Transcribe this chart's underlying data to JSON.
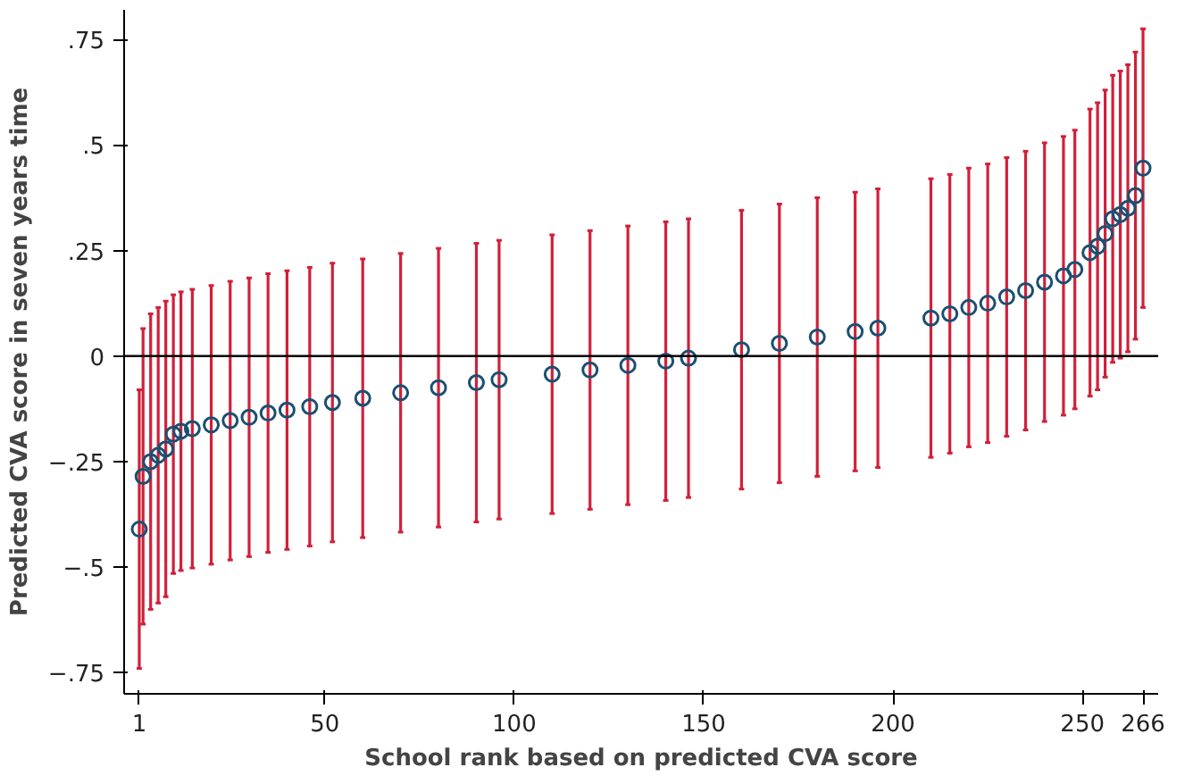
{
  "chart_data": {
    "type": "scatter",
    "xlabel": "School rank based on predicted CVA score",
    "ylabel": "Predicted CVA score in seven years time",
    "marker": "circle",
    "x": [
      1,
      2,
      4,
      6,
      8,
      10,
      12,
      15,
      20,
      25,
      30,
      35,
      40,
      46,
      52,
      60,
      70,
      80,
      90,
      96,
      110,
      120,
      130,
      140,
      146,
      160,
      170,
      180,
      190,
      196,
      210,
      215,
      220,
      225,
      230,
      235,
      240,
      245,
      248,
      252,
      254,
      256,
      258,
      260,
      262,
      264,
      266
    ],
    "series": [
      {
        "color": "#1b4f72",
        "values": [
          -0.41,
          -0.285,
          -0.25,
          -0.235,
          -0.22,
          -0.185,
          -0.178,
          -0.172,
          -0.163,
          -0.153,
          -0.145,
          -0.135,
          -0.128,
          -0.12,
          -0.11,
          -0.1,
          -0.087,
          -0.075,
          -0.063,
          -0.056,
          -0.043,
          -0.033,
          -0.022,
          -0.012,
          -0.005,
          0.015,
          0.03,
          0.045,
          0.058,
          0.066,
          0.09,
          0.1,
          0.115,
          0.125,
          0.14,
          0.155,
          0.175,
          0.19,
          0.205,
          0.245,
          0.26,
          0.29,
          0.325,
          0.335,
          0.35,
          0.38,
          0.445
        ],
        "errors": [
          0.33,
          0.35,
          0.35,
          0.35,
          0.35,
          0.33,
          0.33,
          0.33,
          0.33,
          0.33,
          0.33,
          0.33,
          0.33,
          0.33,
          0.33,
          0.33,
          0.33,
          0.33,
          0.33,
          0.33,
          0.33,
          0.33,
          0.33,
          0.33,
          0.33,
          0.33,
          0.33,
          0.33,
          0.33,
          0.33,
          0.33,
          0.33,
          0.33,
          0.33,
          0.33,
          0.33,
          0.33,
          0.33,
          0.33,
          0.34,
          0.34,
          0.34,
          0.34,
          0.34,
          0.34,
          0.34,
          0.33
        ]
      }
    ],
    "xlim": [
      -3,
      270
    ],
    "ylim": [
      -0.8,
      0.82
    ],
    "xticks": [
      1,
      50,
      100,
      150,
      200,
      250,
      266
    ],
    "yticks": [
      {
        "value": -0.75,
        "label": "−.75"
      },
      {
        "value": -0.5,
        "label": "−.5"
      },
      {
        "value": -0.25,
        "label": "−.25"
      },
      0,
      {
        "value": 0.25,
        "label": ".25"
      },
      {
        "value": 0.5,
        "label": ".5"
      },
      {
        "value": 0.75,
        "label": ".75"
      }
    ],
    "ref_lines": [
      {
        "axis": "y",
        "value": 0,
        "color": "#000000"
      }
    ]
  }
}
